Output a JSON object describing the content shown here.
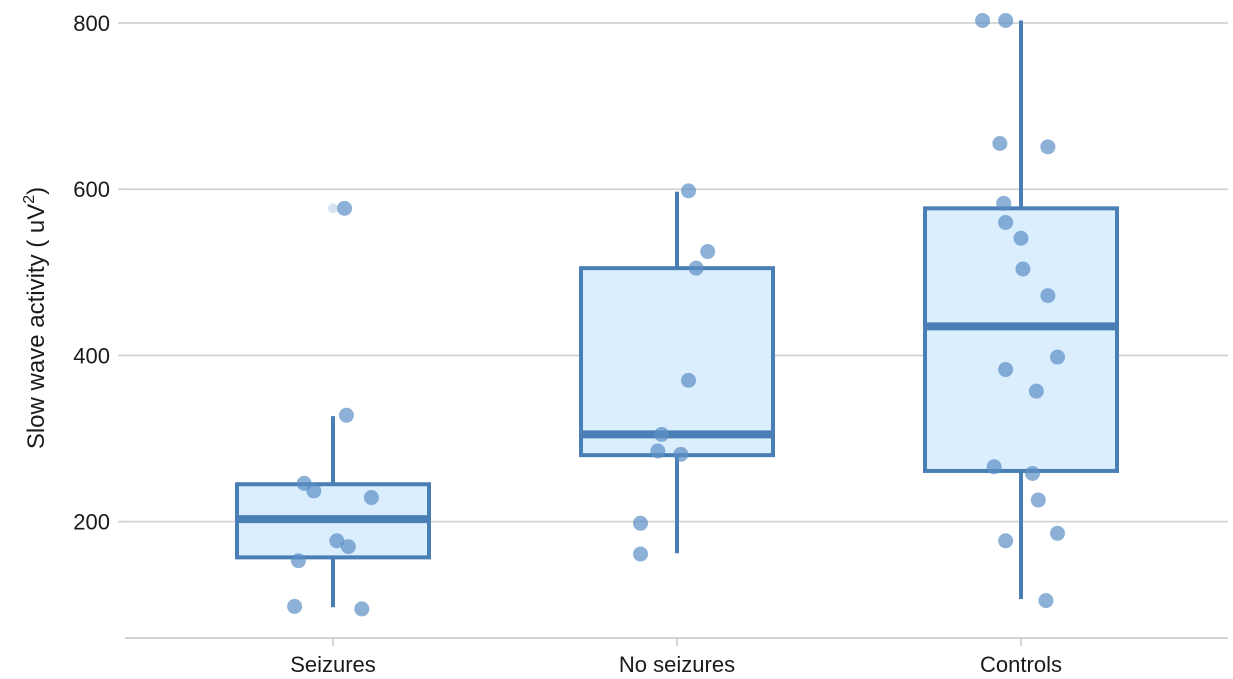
{
  "chart_data": {
    "type": "box",
    "ylabel": "Slow wave activity ( uV",
    "ylabel_superscript": "2",
    "ylabel_close": ")",
    "xlabel": "",
    "ylim": [
      60,
      805
    ],
    "yticks": [
      200,
      400,
      600,
      800
    ],
    "ytick_labels": [
      "200",
      "400",
      "600",
      "800"
    ],
    "grid": true,
    "colors": {
      "box_stroke": "#4a7fb5",
      "box_fill": "#dbeefd",
      "points": "#5b8fc4",
      "grid": "#d3d3d3"
    },
    "categories": [
      "Seizures",
      "No seizures",
      "Controls"
    ],
    "boxes": [
      {
        "category": "Seizures",
        "min": 97,
        "q1": 157,
        "median": 203,
        "q3": 245,
        "max": 327,
        "outliers": [
          577
        ]
      },
      {
        "category": "No seizures",
        "min": 162,
        "q1": 280,
        "median": 305,
        "q3": 505,
        "max": 597,
        "outliers": []
      },
      {
        "category": "Controls",
        "min": 107,
        "q1": 261,
        "median": 435,
        "q3": 577,
        "max": 803,
        "outliers": []
      }
    ],
    "points": [
      {
        "category": "Seizures",
        "values": [
          577,
          328,
          246,
          237,
          229,
          177,
          170,
          153,
          98,
          95
        ],
        "jitter": [
          0.06,
          0.07,
          -0.15,
          -0.1,
          0.2,
          0.02,
          0.08,
          -0.18,
          -0.2,
          0.15
        ]
      },
      {
        "category": "No seizures",
        "values": [
          598,
          525,
          505,
          370,
          305,
          285,
          281,
          198,
          161
        ],
        "jitter": [
          0.06,
          0.16,
          0.1,
          0.06,
          -0.08,
          -0.1,
          0.02,
          -0.19,
          -0.19
        ]
      },
      {
        "category": "Controls",
        "values": [
          803,
          803,
          655,
          651,
          583,
          560,
          541,
          504,
          472,
          398,
          383,
          357,
          266,
          258,
          226,
          186,
          177,
          105
        ],
        "jitter": [
          -0.2,
          -0.08,
          -0.11,
          0.14,
          -0.09,
          -0.08,
          0.0,
          0.01,
          0.14,
          0.19,
          -0.08,
          0.08,
          -0.14,
          0.06,
          0.09,
          0.19,
          -0.08,
          0.13
        ]
      }
    ]
  }
}
